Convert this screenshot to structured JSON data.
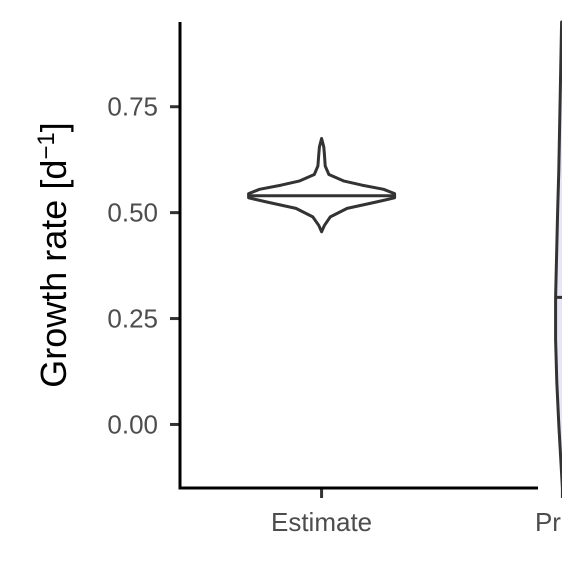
{
  "chart_data": {
    "type": "violin",
    "title": "",
    "xlabel": "",
    "ylabel": "Growth rate [d",
    "ylabel_superscript": "−1",
    "ylabel_close": "]",
    "categories": [
      "Estimate",
      "Prior"
    ],
    "y_ticks": [
      0.0,
      0.25,
      0.5,
      0.75
    ],
    "y_tick_labels": [
      "0.00",
      "0.25",
      "0.50",
      "0.75"
    ],
    "ylim": [
      -0.15,
      0.95
    ],
    "grid": false,
    "series": [
      {
        "category": "Estimate",
        "median": 0.54,
        "fill": "#ffffff",
        "density": [
          [
            0.455,
            0.0
          ],
          [
            0.47,
            0.04
          ],
          [
            0.49,
            0.12
          ],
          [
            0.51,
            0.35
          ],
          [
            0.525,
            0.75
          ],
          [
            0.535,
            1.0
          ],
          [
            0.545,
            1.0
          ],
          [
            0.555,
            0.85
          ],
          [
            0.565,
            0.55
          ],
          [
            0.575,
            0.3
          ],
          [
            0.59,
            0.1
          ],
          [
            0.61,
            0.05
          ],
          [
            0.635,
            0.04
          ],
          [
            0.655,
            0.03
          ],
          [
            0.675,
            0.0
          ]
        ]
      },
      {
        "category": "Prior",
        "median": 0.3,
        "fill": "#e6e6f5",
        "density": [
          [
            -0.15,
            0.0
          ],
          [
            -0.1,
            0.15
          ],
          [
            0.0,
            0.45
          ],
          [
            0.1,
            0.7
          ],
          [
            0.2,
            0.85
          ],
          [
            0.3,
            0.85
          ],
          [
            0.4,
            0.72
          ],
          [
            0.5,
            0.6
          ],
          [
            0.6,
            0.45
          ],
          [
            0.7,
            0.35
          ],
          [
            0.8,
            0.25
          ],
          [
            0.9,
            0.15
          ],
          [
            0.95,
            0.1
          ]
        ]
      }
    ]
  }
}
